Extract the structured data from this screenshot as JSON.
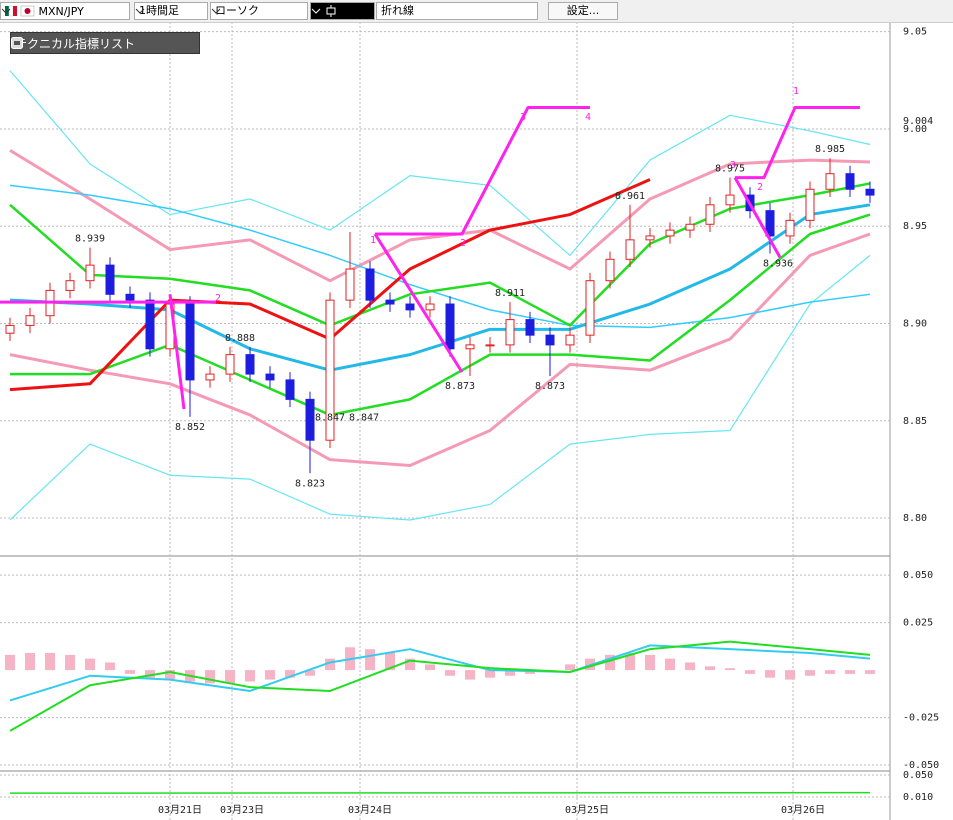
{
  "toolbar": {
    "symbol": "MXN/JPY",
    "timeframe": "1時間足",
    "chart_type": "ローソク",
    "line_type": "折れ線",
    "settings": "設定..."
  },
  "indicator_panel": {
    "title": "テクニカル指標リスト"
  },
  "chart_data": [
    {
      "type": "candlestick",
      "open": [
        8.895,
        8.899,
        8.904,
        8.917,
        8.922,
        8.93,
        8.915,
        8.912,
        8.887,
        8.91,
        8.871,
        8.874,
        8.884,
        8.874,
        8.871,
        8.861,
        8.84,
        8.912,
        8.928,
        8.912,
        8.91,
        8.907,
        8.91,
        8.887,
        8.889,
        8.889,
        8.902,
        8.894,
        8.889,
        8.894,
        8.922,
        8.933,
        8.943,
        8.945,
        8.948,
        8.951,
        8.961,
        8.966,
        8.958,
        8.945,
        8.953,
        8.969,
        8.977,
        8.969
      ],
      "high": [
        8.903,
        8.908,
        8.921,
        8.926,
        8.939,
        8.934,
        8.919,
        8.916,
        8.914,
        8.914,
        8.878,
        8.888,
        8.888,
        8.878,
        8.875,
        8.865,
        8.916,
        8.947,
        8.932,
        8.916,
        8.914,
        8.914,
        8.914,
        8.893,
        8.893,
        8.911,
        8.906,
        8.898,
        8.898,
        8.926,
        8.937,
        8.961,
        8.949,
        8.952,
        8.955,
        8.965,
        8.975,
        8.97,
        8.962,
        8.957,
        8.973,
        8.985,
        8.981,
        8.973
      ],
      "low": [
        8.891,
        8.895,
        8.9,
        8.913,
        8.918,
        8.911,
        8.908,
        8.883,
        8.883,
        8.852,
        8.867,
        8.87,
        8.87,
        8.867,
        8.857,
        8.823,
        8.836,
        8.908,
        8.908,
        8.906,
        8.903,
        8.903,
        8.883,
        8.873,
        8.885,
        8.885,
        8.89,
        8.873,
        8.885,
        8.89,
        8.918,
        8.929,
        8.939,
        8.941,
        8.944,
        8.947,
        8.957,
        8.954,
        8.936,
        8.941,
        8.949,
        8.965,
        8.965,
        8.962
      ],
      "close": [
        8.899,
        8.904,
        8.917,
        8.922,
        8.93,
        8.915,
        8.912,
        8.887,
        8.91,
        8.871,
        8.874,
        8.884,
        8.874,
        8.871,
        8.861,
        8.84,
        8.912,
        8.928,
        8.912,
        8.91,
        8.907,
        8.91,
        8.887,
        8.889,
        8.889,
        8.902,
        8.894,
        8.889,
        8.894,
        8.922,
        8.933,
        8.943,
        8.945,
        8.948,
        8.951,
        8.961,
        8.966,
        8.958,
        8.945,
        8.953,
        8.969,
        8.977,
        8.969,
        8.966
      ],
      "up_color": "#e32222",
      "down_color": "#1d1de0",
      "ylim": [
        8.781,
        9.056
      ],
      "yticks": [
        9.05,
        {
          "value": 9,
          "label": "9.00"
        },
        8.95,
        {
          "value": 8.9,
          "label": "8.90"
        },
        8.85,
        {
          "value": 8.8,
          "label": "8.80"
        }
      ],
      "xticks": [
        {
          "value": 8,
          "label": "03月21日"
        },
        {
          "value": 11.1,
          "label": "03月23日"
        },
        {
          "value": 17.5,
          "label": "03月24日"
        },
        {
          "value": 28.35,
          "label": "03月25日"
        },
        {
          "value": 39.15,
          "label": "03月26日"
        }
      ],
      "last_price": 9.004,
      "line_x": [
        0,
        4,
        8,
        12,
        16,
        20,
        24,
        28,
        32,
        36,
        40,
        43
      ],
      "lines": [
        {
          "color": "#66e6f2",
          "width": 1.2,
          "values": [
            9.03,
            8.982,
            8.956,
            8.964,
            8.948,
            8.976,
            8.971,
            8.935,
            8.984,
            9.007,
            8.999,
            8.992
          ]
        },
        {
          "color": "#66e6f2",
          "width": 1.2,
          "values": [
            8.799,
            8.838,
            8.822,
            8.82,
            8.802,
            8.799,
            8.807,
            8.838,
            8.843,
            8.845,
            8.91,
            8.935
          ]
        },
        {
          "color": "#f59ab5",
          "width": 3,
          "values": [
            8.989,
            8.964,
            8.938,
            8.943,
            8.922,
            8.943,
            8.948,
            8.928,
            8.964,
            8.982,
            8.984,
            8.983
          ]
        },
        {
          "color": "#f59ab5",
          "width": 3,
          "values": [
            8.884,
            8.876,
            8.869,
            8.853,
            8.83,
            8.827,
            8.845,
            8.879,
            8.876,
            8.892,
            8.935,
            8.946
          ]
        },
        {
          "color": "#33ccff",
          "width": 1.5,
          "values": [
            8.971,
            8.966,
            8.959,
            8.948,
            8.935,
            8.92,
            8.907,
            8.899,
            8.898,
            8.903,
            8.911,
            8.915
          ]
        },
        {
          "color": "#22dd22",
          "width": 2.5,
          "values": [
            8.961,
            8.925,
            8.923,
            8.917,
            8.899,
            8.915,
            8.921,
            8.899,
            8.941,
            8.959,
            8.966,
            8.972
          ]
        },
        {
          "color": "#22dd22",
          "width": 2.5,
          "values": [
            8.874,
            8.874,
            8.889,
            8.871,
            8.853,
            8.861,
            8.884,
            8.884,
            8.881,
            8.912,
            8.946,
            8.956
          ]
        },
        {
          "color": "#22b8e8",
          "width": 3,
          "values": [
            8.912,
            8.91,
            8.907,
            8.887,
            8.876,
            8.884,
            8.897,
            8.897,
            8.91,
            8.928,
            8.956,
            8.961
          ]
        },
        {
          "color": "#ee1111",
          "width": 3,
          "values": [
            8.866,
            8.869,
            8.912,
            8.91,
            8.892,
            8.928,
            8.948,
            8.956,
            8.974,
            null,
            null,
            null
          ]
        }
      ],
      "zigzag": {
        "color": "#ff22ee",
        "x": [
          -0.5,
          10.3,
          null,
          8.0,
          8.7,
          null,
          18.25,
          22.6,
          null,
          18.25,
          22.6,
          25.9,
          29,
          null,
          36.25,
          38.5,
          null,
          36.25,
          37.7,
          39.25,
          42.5
        ],
        "values": [
          8.911,
          8.911,
          null,
          8.915,
          8.856,
          null,
          8.946,
          8.875,
          null,
          8.946,
          8.946,
          9.011,
          9.011,
          null,
          8.975,
          8.934,
          null,
          8.975,
          8.975,
          9.011,
          9.011
        ],
        "labels": [
          "2",
          "1",
          "2",
          "3",
          "4",
          "3",
          "2",
          "1"
        ]
      },
      "price_labels": [
        {
          "x": 4,
          "value": 8.939,
          "position": "above"
        },
        {
          "x": 9,
          "value": 8.852,
          "position": "below"
        },
        {
          "x": 11.5,
          "value": 8.888,
          "position": "above"
        },
        {
          "x": 15,
          "value": 8.823,
          "position": "below"
        },
        {
          "x": 16,
          "value": 8.847,
          "position": "above"
        },
        {
          "x": 17.7,
          "value": 8.847,
          "position": "above"
        },
        {
          "x": 22.5,
          "value": 8.873,
          "position": "below"
        },
        {
          "x": 25,
          "value": 8.911,
          "position": "above"
        },
        {
          "x": 27,
          "value": 8.873,
          "position": "below"
        },
        {
          "x": 31,
          "value": 8.961,
          "position": "above"
        },
        {
          "x": 36,
          "value": 8.975,
          "position": "above"
        },
        {
          "x": 38.4,
          "value": 8.936,
          "position": "below"
        },
        {
          "x": 41,
          "value": 8.985,
          "position": "above"
        }
      ]
    },
    {
      "type": "macd",
      "histogram": {
        "color": "#f6b3c6",
        "values": [
          0.008,
          0.009,
          0.009,
          0.008,
          0.006,
          0.004,
          -0.002,
          -0.004,
          -0.005,
          -0.006,
          -0.007,
          -0.007,
          -0.006,
          -0.005,
          -0.004,
          -0.003,
          0.006,
          0.012,
          0.011,
          0.009,
          0.006,
          0.003,
          -0.003,
          -0.005,
          -0.004,
          -0.003,
          -0.002,
          -0.001,
          0.003,
          0.006,
          0.008,
          0.009,
          0.008,
          0.006,
          0.004,
          0.002,
          0.001,
          -0.002,
          -0.004,
          -0.005,
          -0.003,
          -0.002,
          -0.002,
          -0.002
        ]
      },
      "x": [
        0,
        4,
        8,
        12,
        16,
        20,
        24,
        28,
        32,
        36,
        40,
        43
      ],
      "series": [
        {
          "color": "#33ccee",
          "width": 2,
          "values": [
            -0.016,
            -0.003,
            -0.005,
            -0.011,
            0.004,
            0.011,
            0.0,
            -0.001,
            0.013,
            0.011,
            0.009,
            0.006
          ]
        },
        {
          "color": "#22dd22",
          "width": 2,
          "values": [
            -0.032,
            -0.008,
            -0.001,
            -0.009,
            -0.011,
            0.005,
            0.001,
            -0.001,
            0.011,
            0.015,
            0.011,
            0.008
          ]
        }
      ],
      "ylim": [
        -0.0526,
        0.059
      ],
      "yticks": [
        {
          "value": 0.05,
          "label": "0.050"
        },
        {
          "value": 0.025,
          "label": "0.025"
        },
        {
          "value": -0.025,
          "label": "-0.025"
        },
        {
          "value": -0.05,
          "label": "-0.050"
        }
      ]
    },
    {
      "type": "line",
      "x": [
        0,
        43
      ],
      "series": [
        {
          "color": "#22dd22",
          "width": 1.5,
          "values": [
            0.017,
            0.018
          ]
        }
      ],
      "ylim": [
        -0.0136,
        0.0555
      ],
      "yticks": [
        {
          "value": 0.05,
          "label": "0.050"
        },
        {
          "value": 0.01,
          "label": "0.010"
        }
      ]
    }
  ]
}
